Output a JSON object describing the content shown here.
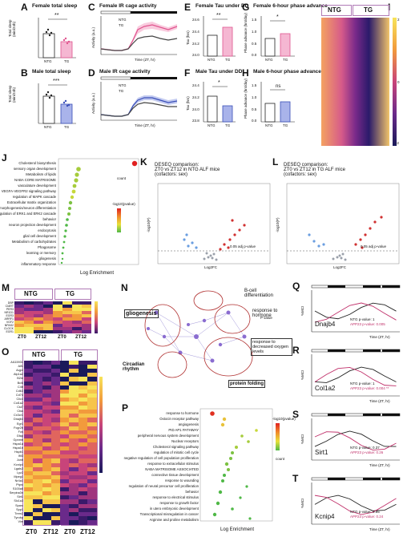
{
  "panels": {
    "A": {
      "label": "A",
      "title": "Female total sleep",
      "ylabel": "Total sleep\n(min/24h)",
      "groups": [
        "NTG",
        "TG"
      ],
      "sig": "**",
      "colors": [
        "#222222",
        "#e0558f"
      ],
      "values": [
        0.6,
        0.35
      ]
    },
    "B": {
      "label": "B",
      "title": "Male total sleep",
      "ylabel": "Total sleep\n(min/24h)",
      "groups": [
        "NTG",
        "TG"
      ],
      "sig": "***",
      "colors": [
        "#222222",
        "#3a4fb8"
      ],
      "values": [
        0.62,
        0.42
      ]
    },
    "C": {
      "label": "C",
      "title": "Female IR cage activity",
      "ylabel": "Activity (a.u.)",
      "xlabel": "Time (ZT, hr)",
      "legend": [
        "NTG",
        "TG"
      ],
      "xticks": [
        "0",
        "6",
        "12",
        "18",
        "24"
      ]
    },
    "D": {
      "label": "D",
      "title": "Male IR cage activity",
      "ylabel": "Activity (a.u.)",
      "xlabel": "Time (ZT, hr)",
      "legend": [
        "NTG",
        "TG"
      ],
      "xticks": [
        "0",
        "6",
        "12",
        "18",
        "24"
      ]
    },
    "E": {
      "label": "E",
      "title": "Female Tau under DD",
      "ylabel": "Tau (hrs)",
      "groups": [
        "NTG",
        "TG"
      ],
      "sig": "**",
      "yticks": [
        "24.6",
        "24.4",
        "24.2",
        "24.0"
      ],
      "values": [
        0.45,
        0.62
      ]
    },
    "F": {
      "label": "F",
      "title": "Male Tau under DD",
      "ylabel": "Tau (hrs)",
      "groups": [
        "NTG",
        "TG"
      ],
      "sig": "*",
      "yticks": [
        "24.4",
        "24.2",
        "24.0",
        "23.8"
      ],
      "values": [
        0.55,
        0.38
      ]
    },
    "G": {
      "label": "G",
      "title": "Female 6-hour phase advance",
      "ylabel": "Phase advance (hrs/day)",
      "groups": [
        "NTG",
        "TG"
      ],
      "sig": "*",
      "yticks": [
        "1.5",
        "1.0",
        "0.5",
        "0.0"
      ],
      "values": [
        0.45,
        0.58
      ]
    },
    "H": {
      "label": "H",
      "title": "Male 6-hour phase advance",
      "ylabel": "Phase advance (hrs/day)",
      "groups": [
        "NTG",
        "TG"
      ],
      "sig": "ns",
      "yticks": [
        "1.5",
        "1.0",
        "0.5",
        "0.0"
      ],
      "values": [
        0.45,
        0.5
      ]
    },
    "I": {
      "label": "I",
      "groups": [
        "NTG",
        "TG"
      ],
      "scale": [
        "2",
        "1",
        "0",
        "-1",
        "-2"
      ]
    },
    "J": {
      "label": "J",
      "xlabel": "Log Enrichment",
      "xticks": [
        "0.5",
        "0.75",
        "1.0",
        "1.25",
        "1.50",
        "1.75"
      ],
      "terms": [
        "Cholesterol biosynthesis",
        "sensory organ development",
        "Metabolism of lipids",
        "NABA CORE MATRISOME",
        "vasculature development",
        "VEGFA-VEGFR2 signaling pathway",
        "regulation of MAPK cascade",
        "Extracellular matrix organization",
        "cell morphogenesis/neuron differentiation",
        "regulation of ERK1 and ERK2 cascade",
        "behavior",
        "neuron projection development",
        "endocytosis",
        "glial cell development",
        "Metabolism of carbohydrates",
        "Phagosome",
        "learning or memory",
        "gliogenesis",
        "inflammatory response"
      ],
      "legend_count_title": "count",
      "legend_counts": [
        "5",
        "10",
        "15",
        "20"
      ],
      "legend_p_title": "-log10(pvalue)"
    },
    "K": {
      "label": "K",
      "title": "DESEQ comparison:\nZT0 vs ZT12 in NTG ALF mice\n(cofactors: sex)",
      "xlabel": "Log2FC",
      "ylabel": "-log10(P)",
      "note": "0.05 adj p-value"
    },
    "L": {
      "label": "L",
      "title": "DESEQ comparison:\nZT0 vs ZT12 in TG ALF mice\n(cofactors: sex)",
      "xlabel": "Log2FC",
      "ylabel": "-log10(P)",
      "note": "0.05 adj p-value"
    },
    "M": {
      "label": "M",
      "groups": [
        "NTG",
        "TG"
      ],
      "times": [
        "ZT0",
        "ZT12",
        "ZT0",
        "ZT12"
      ],
      "genes": [
        "DBP",
        "CIART",
        "PER3",
        "NR1D1",
        "EGR3",
        "ARRF1",
        "VGF2",
        "NPAS2",
        "CLOCK",
        "EGR1"
      ],
      "scale": [
        "2",
        "1",
        "0",
        "-1"
      ]
    },
    "N": {
      "label": "N",
      "annotations": [
        "B-cell differentiation",
        "response to hormone",
        "gliogenesis",
        "response to decreased oxygen levels",
        "Circadian rhythm",
        "protein folding"
      ],
      "legend_title": "P value"
    },
    "O": {
      "label": "O",
      "groups": [
        "NTG",
        "TG"
      ],
      "times": [
        "ZT0",
        "ZT12",
        "ZT0",
        "ZT12"
      ],
      "genes": [
        "Ai115931",
        "Aif1",
        "Aqp4",
        "Atp1a2",
        "B2m",
        "Bcl6",
        "C4b",
        "Cd63",
        "Cd74",
        "Clic4",
        "Col1a2",
        "Cst7",
        "Ctss",
        "Cx3cr1",
        "Dnajb4",
        "Egr1",
        "Fcgr2b",
        "Fos",
        "Gfap",
        "Gpnmb",
        "Hspa1a",
        "Hspa1b",
        "Hspb1",
        "Ifit3",
        "Junb",
        "Kcnip4",
        "Lgals3",
        "Lyz2",
        "Mpeg1",
        "Nr4a1",
        "Ptprc",
        "S100a6",
        "Serpina3n",
        "Sirt1",
        "Slc1a3",
        "Sparc",
        "Spp1",
        "Trem2",
        "Tyrobp",
        "Vim"
      ],
      "scale": [
        "2",
        "1",
        "0",
        "-1",
        "-2"
      ]
    },
    "P": {
      "label": "P",
      "xlabel": "Log Enrichment",
      "xticks": [
        "0.75",
        "1.00",
        "1.25"
      ],
      "terms": [
        "response to hormone",
        "Oxtocin receptor pathway",
        "angiogenesis",
        "PID AP1 PATHWAY",
        "peripheral nervous system development",
        "Nuclear receptors",
        "Cholesterol signaling pathway",
        "regulation of mitotic cell cycle",
        "negative regulation of cell population proliferation",
        "response to extracellular stimulus",
        "NABA MATRISOME ASSOCIATED",
        "connective tissue development",
        "response to wounding",
        "regulation of neural precursor cell proliferation",
        "behavior",
        "response to electrical stimulus",
        "response to growth factor",
        "in utero embryonic development",
        "Transcriptional misregulation in cancer",
        "Arginine and proline metabolism"
      ],
      "legend_p_title": "-log10(pvalue)",
      "legend_count_title": "count",
      "legend_counts": [
        "3",
        "4",
        "5",
        "6"
      ]
    },
    "Q": {
      "label": "Q",
      "gene": "Dnajb4",
      "ylabel": "%MCI",
      "ntg_p": "NTG p-value: 1",
      "tg_p": "APP23 p-value: 0.005"
    },
    "R": {
      "label": "R",
      "gene": "Col1a2",
      "ylabel": "%MCI",
      "ntg_p": "NTG p-value: 1",
      "tg_p": "APP23 p-value: 0.004 **"
    },
    "S": {
      "label": "S",
      "gene": "Sirt1",
      "ylabel": "%MCI",
      "ntg_p": "NTG p-value: 0.37",
      "tg_p": "APP23 p-value: 0.26"
    },
    "T": {
      "label": "T",
      "gene": "Kcnip4",
      "ylabel": "%MCI",
      "ntg_p": "NTG p-value: 0.85",
      "tg_p": "APP23 p-value: 0.24"
    },
    "xaxis_time": "Time (ZT, hr)",
    "xticks_time": [
      "0",
      "6",
      "12",
      "18",
      "24",
      "30",
      "36",
      "42"
    ]
  },
  "chart_data": [
    {
      "type": "bar",
      "title": "Female total sleep",
      "categories": [
        "NTG",
        "TG"
      ],
      "values": [
        560,
        470
      ],
      "ylabel": "Total sleep"
    },
    {
      "type": "bar",
      "title": "Male total sleep",
      "categories": [
        "NTG",
        "TG"
      ],
      "values": [
        600,
        480
      ],
      "ylabel": "Total sleep"
    },
    {
      "type": "line",
      "title": "Female IR cage activity",
      "xlabel": "Time (ZT, hr)",
      "x": [
        0,
        2,
        4,
        6,
        8,
        10,
        12,
        13,
        14,
        16,
        18,
        20,
        22,
        24
      ],
      "series": [
        {
          "name": "NTG",
          "values": [
            0.3,
            0.28,
            0.27,
            0.27,
            0.28,
            0.3,
            0.45,
            0.9,
            1.1,
            1.15,
            1.1,
            0.95,
            0.9,
            0.95
          ]
        },
        {
          "name": "TG",
          "values": [
            0.3,
            0.28,
            0.27,
            0.27,
            0.28,
            0.3,
            0.5,
            1.2,
            1.6,
            1.75,
            1.7,
            1.55,
            1.45,
            1.6
          ]
        }
      ]
    },
    {
      "type": "line",
      "title": "Male IR cage activity",
      "xlabel": "Time (ZT, hr)",
      "x": [
        0,
        2,
        4,
        6,
        8,
        10,
        12,
        13,
        14,
        16,
        18,
        20,
        22,
        24
      ],
      "series": [
        {
          "name": "NTG",
          "values": [
            0.3,
            0.28,
            0.27,
            0.27,
            0.28,
            0.3,
            0.45,
            0.85,
            1.0,
            1.0,
            0.95,
            0.85,
            0.8,
            0.8
          ]
        },
        {
          "name": "TG",
          "values": [
            0.3,
            0.28,
            0.27,
            0.27,
            0.28,
            0.3,
            0.5,
            1.0,
            1.2,
            1.25,
            1.2,
            1.05,
            0.95,
            1.0
          ]
        }
      ]
    },
    {
      "type": "bar",
      "title": "Female Tau under DD",
      "categories": [
        "NTG",
        "TG"
      ],
      "values": [
        24.1,
        24.35
      ],
      "ylabel": "Tau (hrs)"
    },
    {
      "type": "bar",
      "title": "Male Tau under DD",
      "categories": [
        "NTG",
        "TG"
      ],
      "values": [
        24.15,
        23.95
      ],
      "ylabel": "Tau (hrs)"
    },
    {
      "type": "bar",
      "title": "Female 6-hour phase advance",
      "categories": [
        "NTG",
        "TG"
      ],
      "values": [
        0.65,
        0.85
      ]
    },
    {
      "type": "bar",
      "title": "Male 6-hour phase advance",
      "categories": [
        "NTG",
        "TG"
      ],
      "values": [
        0.68,
        0.75
      ]
    }
  ]
}
